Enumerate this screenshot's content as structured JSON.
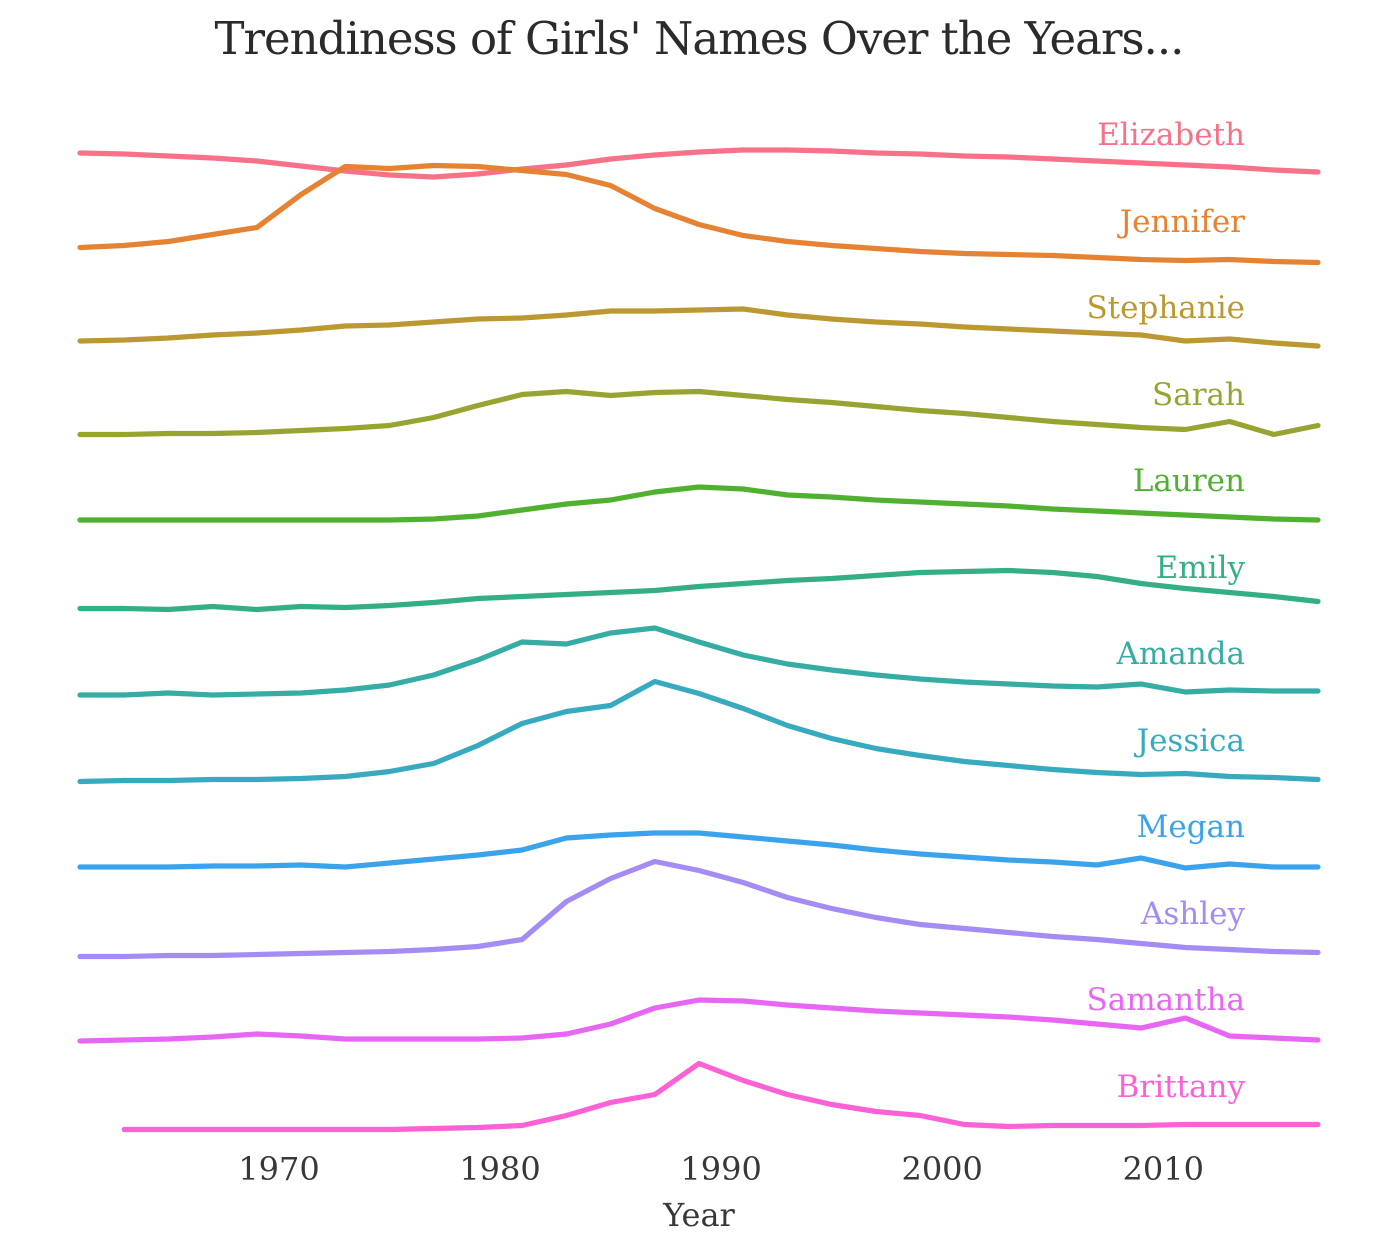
{
  "chart_data": {
    "type": "line",
    "title": "Trendiness of Girls' Names Over the Years...",
    "xlabel": "Year",
    "ylabel": "",
    "layout": "ridgeline - one stacked row per name, series label right-aligned in its color, no y-axis, no gridlines",
    "x_range": [
      1961,
      2017
    ],
    "x_ticks": [
      "1970",
      "1980",
      "1990",
      "2000",
      "2010"
    ],
    "x_tick_years": [
      1970,
      1980,
      1990,
      2000,
      2010
    ],
    "years": [
      1961,
      1963,
      1965,
      1967,
      1969,
      1971,
      1973,
      1975,
      1977,
      1979,
      1981,
      1983,
      1985,
      1987,
      1989,
      1991,
      1993,
      1995,
      1997,
      1999,
      2001,
      2003,
      2005,
      2007,
      2009,
      2011,
      2013,
      2015,
      2017
    ],
    "value_note": "trendiness, normalized 0-1 relative to each name's baseline; ~1.0 = tallest bump in figure",
    "series": [
      {
        "name": "Elizabeth",
        "color": "#f77189",
        "values": [
          0.25,
          0.24,
          0.22,
          0.2,
          0.17,
          0.12,
          0.07,
          0.03,
          0.01,
          0.04,
          0.09,
          0.13,
          0.19,
          0.23,
          0.26,
          0.28,
          0.28,
          0.27,
          0.25,
          0.24,
          0.22,
          0.21,
          0.19,
          0.17,
          0.15,
          0.13,
          0.11,
          0.08,
          0.06
        ]
      },
      {
        "name": "Jennifer",
        "color": "#e68332",
        "values": [
          0.17,
          0.19,
          0.23,
          0.3,
          0.37,
          0.7,
          0.98,
          0.96,
          0.99,
          0.98,
          0.94,
          0.9,
          0.79,
          0.56,
          0.4,
          0.29,
          0.23,
          0.19,
          0.16,
          0.13,
          0.11,
          0.1,
          0.09,
          0.07,
          0.05,
          0.04,
          0.05,
          0.03,
          0.02
        ]
      },
      {
        "name": "Stephanie",
        "color": "#bb9832",
        "values": [
          0.1,
          0.11,
          0.13,
          0.16,
          0.18,
          0.21,
          0.25,
          0.26,
          0.29,
          0.32,
          0.33,
          0.36,
          0.4,
          0.4,
          0.41,
          0.42,
          0.36,
          0.32,
          0.29,
          0.27,
          0.24,
          0.22,
          0.2,
          0.18,
          0.16,
          0.1,
          0.12,
          0.08,
          0.05
        ]
      },
      {
        "name": "Sarah",
        "color": "#97a431",
        "values": [
          0.03,
          0.03,
          0.04,
          0.04,
          0.05,
          0.07,
          0.09,
          0.12,
          0.2,
          0.32,
          0.43,
          0.46,
          0.42,
          0.45,
          0.46,
          0.42,
          0.38,
          0.35,
          0.31,
          0.27,
          0.24,
          0.2,
          0.16,
          0.13,
          0.1,
          0.08,
          0.16,
          0.03,
          0.12
        ]
      },
      {
        "name": "Lauren",
        "color": "#50b131",
        "values": [
          0.04,
          0.04,
          0.04,
          0.04,
          0.04,
          0.04,
          0.04,
          0.04,
          0.05,
          0.08,
          0.14,
          0.2,
          0.24,
          0.32,
          0.37,
          0.35,
          0.29,
          0.27,
          0.24,
          0.22,
          0.2,
          0.18,
          0.15,
          0.13,
          0.11,
          0.09,
          0.07,
          0.05,
          0.04
        ]
      },
      {
        "name": "Emily",
        "color": "#34af84",
        "values": [
          0.02,
          0.02,
          0.01,
          0.04,
          0.01,
          0.04,
          0.03,
          0.05,
          0.08,
          0.12,
          0.14,
          0.16,
          0.18,
          0.2,
          0.24,
          0.27,
          0.3,
          0.32,
          0.35,
          0.38,
          0.39,
          0.4,
          0.38,
          0.34,
          0.27,
          0.22,
          0.18,
          0.14,
          0.09
        ]
      },
      {
        "name": "Amanda",
        "color": "#36ada4",
        "values": [
          0.02,
          0.02,
          0.04,
          0.02,
          0.03,
          0.04,
          0.07,
          0.12,
          0.22,
          0.37,
          0.55,
          0.53,
          0.64,
          0.69,
          0.55,
          0.42,
          0.33,
          0.27,
          0.22,
          0.18,
          0.15,
          0.13,
          0.11,
          0.1,
          0.13,
          0.05,
          0.07,
          0.06,
          0.06
        ]
      },
      {
        "name": "Jessica",
        "color": "#38aabf",
        "values": [
          0.02,
          0.03,
          0.03,
          0.04,
          0.04,
          0.05,
          0.07,
          0.12,
          0.2,
          0.38,
          0.6,
          0.72,
          0.78,
          1.02,
          0.9,
          0.75,
          0.58,
          0.45,
          0.35,
          0.28,
          0.22,
          0.18,
          0.14,
          0.11,
          0.09,
          0.1,
          0.07,
          0.06,
          0.04
        ]
      },
      {
        "name": "Megan",
        "color": "#3ba3ec",
        "values": [
          0.03,
          0.03,
          0.03,
          0.04,
          0.04,
          0.05,
          0.03,
          0.07,
          0.11,
          0.15,
          0.2,
          0.32,
          0.35,
          0.37,
          0.37,
          0.33,
          0.29,
          0.25,
          0.2,
          0.16,
          0.13,
          0.1,
          0.08,
          0.05,
          0.12,
          0.02,
          0.06,
          0.03,
          0.03
        ]
      },
      {
        "name": "Ashley",
        "color": "#a48cf4",
        "values": [
          0.0,
          0.0,
          0.01,
          0.01,
          0.02,
          0.03,
          0.04,
          0.05,
          0.07,
          0.1,
          0.17,
          0.55,
          0.78,
          0.95,
          0.86,
          0.74,
          0.59,
          0.48,
          0.39,
          0.32,
          0.28,
          0.24,
          0.2,
          0.17,
          0.13,
          0.09,
          0.07,
          0.05,
          0.04
        ]
      },
      {
        "name": "Samantha",
        "color": "#e866f4",
        "values": [
          0.02,
          0.03,
          0.04,
          0.06,
          0.09,
          0.07,
          0.04,
          0.04,
          0.04,
          0.04,
          0.05,
          0.09,
          0.19,
          0.35,
          0.43,
          0.42,
          0.38,
          0.35,
          0.32,
          0.3,
          0.28,
          0.26,
          0.23,
          0.19,
          0.15,
          0.25,
          0.07,
          0.05,
          0.03
        ]
      },
      {
        "name": "Brittany",
        "color": "#fc61d5",
        "values": [
          null,
          0.0,
          0.0,
          0.0,
          0.0,
          0.0,
          0.0,
          0.0,
          0.01,
          0.02,
          0.04,
          0.14,
          0.27,
          0.35,
          0.66,
          0.49,
          0.35,
          0.25,
          0.18,
          0.14,
          0.05,
          0.03,
          0.04,
          0.04,
          0.04,
          0.05,
          0.05,
          0.05,
          0.05
        ]
      }
    ]
  }
}
